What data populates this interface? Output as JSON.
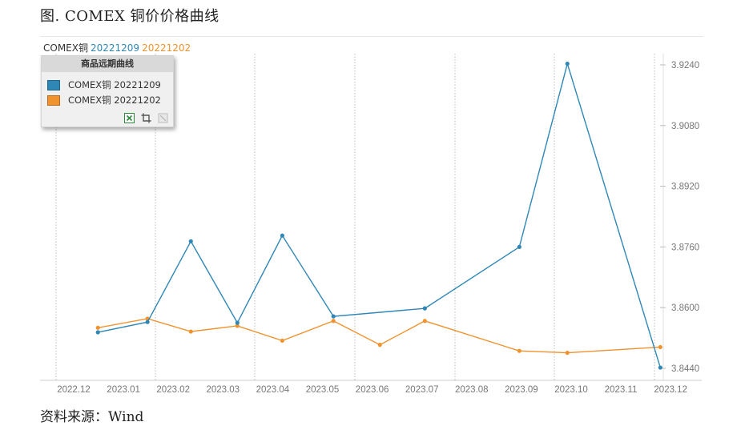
{
  "figure_title": "图. COMEX 铜价价格曲线",
  "source_note": "资料来源：Wind",
  "legend_header": {
    "name": "COMEX铜",
    "s1": "20221209",
    "s2": "20221202"
  },
  "legend_panel": {
    "title": "商品远期曲线",
    "items": [
      {
        "label": "COMEX铜 20221209",
        "color": "#2f87b6"
      },
      {
        "label": "COMEX铜 20221202",
        "color": "#f0922d"
      }
    ],
    "tools": [
      "excel-icon",
      "crop-icon",
      "disabled-tool-icon"
    ]
  },
  "chart_data": {
    "type": "line",
    "categories": [
      "2022.12",
      "2023.01",
      "2023.02",
      "2023.03",
      "2023.04",
      "2023.05",
      "2023.06",
      "2023.07",
      "2023.08",
      "2023.09",
      "2023.10",
      "2023.11",
      "2023.12"
    ],
    "y_ticks": [
      "3.8440",
      "3.8600",
      "3.8760",
      "3.8920",
      "3.9080",
      "3.9240"
    ],
    "ylim": [
      3.844,
      3.9255
    ],
    "grid": "vertical dotted",
    "legend_position": "top-left",
    "series": [
      {
        "name": "COMEX铜 20221209",
        "color": "#2f87b6",
        "points": [
          {
            "x": "2022-12-28",
            "y": 3.8535
          },
          {
            "x": "2023-01-29",
            "y": 3.8562
          },
          {
            "x": "2023-02-26",
            "y": 3.8775
          },
          {
            "x": "2023-03-28",
            "y": 3.856
          },
          {
            "x": "2023-04-26",
            "y": 3.879
          },
          {
            "x": "2023-05-29",
            "y": 3.8577
          },
          {
            "x": "2023-07-27",
            "y": 3.8598
          },
          {
            "x": "2023-09-26",
            "y": 3.876
          },
          {
            "x": "2023-10-27",
            "y": 3.9243
          },
          {
            "x": "2023-12-26",
            "y": 3.8442
          }
        ]
      },
      {
        "name": "COMEX铜 20221202",
        "color": "#f0922d",
        "points": [
          {
            "x": "2022-12-28",
            "y": 3.8547
          },
          {
            "x": "2023-01-29",
            "y": 3.8571
          },
          {
            "x": "2023-02-26",
            "y": 3.8537
          },
          {
            "x": "2023-03-28",
            "y": 3.8552
          },
          {
            "x": "2023-04-26",
            "y": 3.8513
          },
          {
            "x": "2023-05-29",
            "y": 3.8565
          },
          {
            "x": "2023-06-28",
            "y": 3.8502
          },
          {
            "x": "2023-07-27",
            "y": 3.8565
          },
          {
            "x": "2023-09-26",
            "y": 3.8486
          },
          {
            "x": "2023-10-27",
            "y": 3.8481
          },
          {
            "x": "2023-12-26",
            "y": 3.8496
          }
        ]
      }
    ]
  }
}
